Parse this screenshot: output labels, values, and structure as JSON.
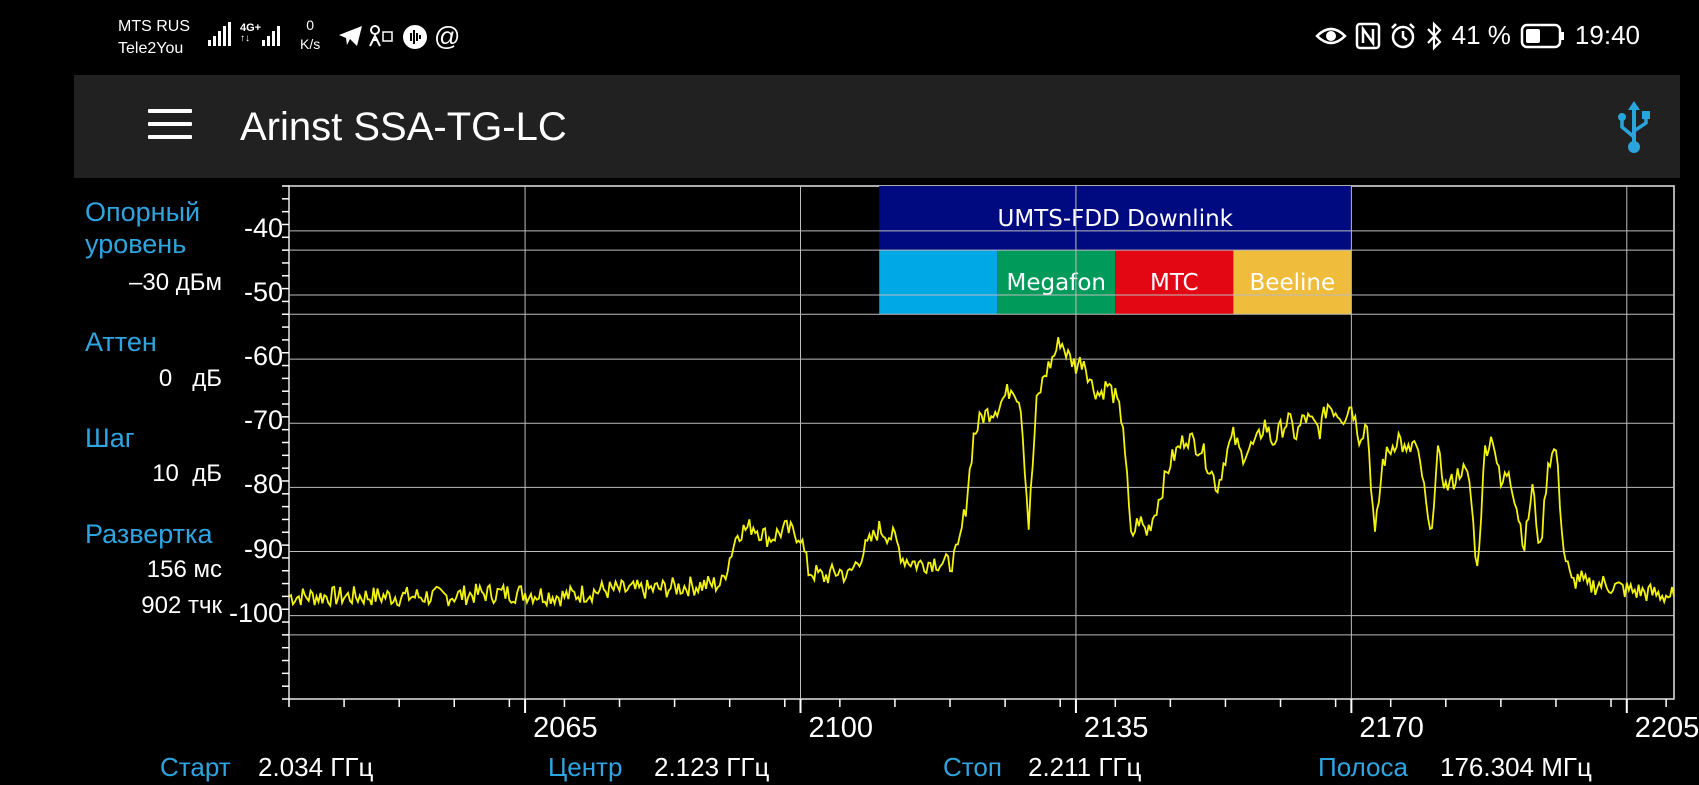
{
  "status_bar": {
    "carrier1": "MTS RUS",
    "carrier2": "Tele2You",
    "net_badge": "4G+",
    "speed_value": "0",
    "speed_unit": "K/s",
    "battery": "41 %",
    "time": "19:40"
  },
  "app_bar": {
    "title": "Arinst SSA-TG-LC"
  },
  "params": {
    "ref_label_line1": "Опорный",
    "ref_label_line2": "уровень",
    "ref_value": "–30 дБм",
    "atten_label": "Аттен",
    "atten_value": "0   дБ",
    "step_label": "Шаг",
    "step_value": "10  дБ",
    "sweep_label": "Развертка",
    "sweep_time": "156 мс",
    "sweep_points": "902 тчк"
  },
  "footer": {
    "start_label": "Старт",
    "start_value": "2.034 ГГц",
    "center_label": "Центр",
    "center_value": "2.123 ГГц",
    "stop_label": "Стоп",
    "stop_value": "2.211 ГГц",
    "span_label": "Полоса",
    "span_value": "176.304 МГц"
  },
  "chart_data": {
    "type": "line",
    "xlim": [
      2035,
      2211
    ],
    "ylim": [
      -113,
      -33
    ],
    "y_ticks": [
      "-40",
      "-50",
      "-60",
      "-70",
      "-80",
      "-90",
      "-100"
    ],
    "y_tick_values": [
      -40,
      -50,
      -60,
      -70,
      -80,
      -90,
      -100
    ],
    "x_ticks": [
      "2065",
      "2100",
      "2135",
      "2170",
      "2205"
    ],
    "x_tick_values": [
      2065,
      2100,
      2135,
      2170,
      2205
    ],
    "grid": true,
    "trace_color": "#f2f20f",
    "band": {
      "label": "UMTS-FDD Downlink",
      "color": "#000a80",
      "x": [
        2110,
        2170
      ],
      "y": [
        -33,
        -43
      ]
    },
    "operators": [
      {
        "name": "",
        "color": "#00a8e6",
        "x": [
          2110,
          2125
        ]
      },
      {
        "name": "Megafon",
        "color": "#009a5a",
        "x": [
          2125,
          2140
        ]
      },
      {
        "name": "MTC",
        "color": "#e30613",
        "x": [
          2140,
          2155
        ]
      },
      {
        "name": "Beeline",
        "color": "#f0bc3c",
        "x": [
          2155,
          2170
        ]
      }
    ],
    "operator_y": [
      -43,
      -53
    ],
    "series": [
      {
        "points": [
          [
            2035,
            -97
          ],
          [
            2040,
            -97
          ],
          [
            2045,
            -97
          ],
          [
            2050,
            -97
          ],
          [
            2055,
            -97
          ],
          [
            2060,
            -96.5
          ],
          [
            2065,
            -96.5
          ],
          [
            2070,
            -97
          ],
          [
            2075,
            -96
          ],
          [
            2080,
            -96
          ],
          [
            2085,
            -95.5
          ],
          [
            2090,
            -95
          ],
          [
            2091,
            -91
          ],
          [
            2092,
            -87
          ],
          [
            2094,
            -86
          ],
          [
            2096,
            -88
          ],
          [
            2098,
            -86.5
          ],
          [
            2100,
            -87.5
          ],
          [
            2101,
            -93
          ],
          [
            2103,
            -94
          ],
          [
            2105,
            -93
          ],
          [
            2106,
            -94
          ],
          [
            2108,
            -90
          ],
          [
            2110,
            -86.5
          ],
          [
            2112,
            -88
          ],
          [
            2113,
            -91
          ],
          [
            2115,
            -92
          ],
          [
            2117,
            -91.5
          ],
          [
            2119,
            -92
          ],
          [
            2120,
            -90
          ],
          [
            2121,
            -83
          ],
          [
            2122,
            -72
          ],
          [
            2123,
            -69
          ],
          [
            2125,
            -67.5
          ],
          [
            2127,
            -64
          ],
          [
            2128,
            -67
          ],
          [
            2129,
            -86
          ],
          [
            2130,
            -67
          ],
          [
            2131,
            -62.5
          ],
          [
            2132,
            -60
          ],
          [
            2133,
            -57
          ],
          [
            2134,
            -59.5
          ],
          [
            2135,
            -61
          ],
          [
            2136,
            -60
          ],
          [
            2137,
            -64
          ],
          [
            2138,
            -65.5
          ],
          [
            2139,
            -64
          ],
          [
            2140,
            -66
          ],
          [
            2141,
            -70
          ],
          [
            2142,
            -88
          ],
          [
            2143,
            -85
          ],
          [
            2144,
            -87
          ],
          [
            2145,
            -84
          ],
          [
            2147,
            -76
          ],
          [
            2149,
            -72
          ],
          [
            2151,
            -74
          ],
          [
            2153,
            -80
          ],
          [
            2154,
            -75
          ],
          [
            2155,
            -72
          ],
          [
            2156,
            -75
          ],
          [
            2158,
            -73
          ],
          [
            2159,
            -70
          ],
          [
            2160,
            -73
          ],
          [
            2161,
            -71
          ],
          [
            2162,
            -69.5
          ],
          [
            2163,
            -72
          ],
          [
            2164,
            -69
          ],
          [
            2166,
            -71
          ],
          [
            2167,
            -67
          ],
          [
            2168,
            -68
          ],
          [
            2169,
            -69
          ],
          [
            2170,
            -67
          ],
          [
            2171,
            -72
          ],
          [
            2172,
            -70
          ],
          [
            2173,
            -88
          ],
          [
            2174,
            -76
          ],
          [
            2176,
            -72
          ],
          [
            2177,
            -75
          ],
          [
            2178,
            -73
          ],
          [
            2179,
            -78
          ],
          [
            2180,
            -88
          ],
          [
            2181,
            -75
          ],
          [
            2182,
            -80
          ],
          [
            2183,
            -79
          ],
          [
            2184,
            -77
          ],
          [
            2185,
            -79
          ],
          [
            2186,
            -93
          ],
          [
            2187,
            -74
          ],
          [
            2188,
            -72
          ],
          [
            2189,
            -80
          ],
          [
            2190,
            -77
          ],
          [
            2191,
            -83
          ],
          [
            2192,
            -89
          ],
          [
            2193,
            -80
          ],
          [
            2194,
            -90
          ],
          [
            2195,
            -76
          ],
          [
            2196,
            -74
          ],
          [
            2197,
            -90
          ],
          [
            2198,
            -95
          ],
          [
            2199,
            -94
          ],
          [
            2200,
            -95.5
          ],
          [
            2202,
            -95
          ],
          [
            2205,
            -96
          ],
          [
            2208,
            -96.5
          ],
          [
            2211,
            -97
          ]
        ]
      }
    ]
  }
}
